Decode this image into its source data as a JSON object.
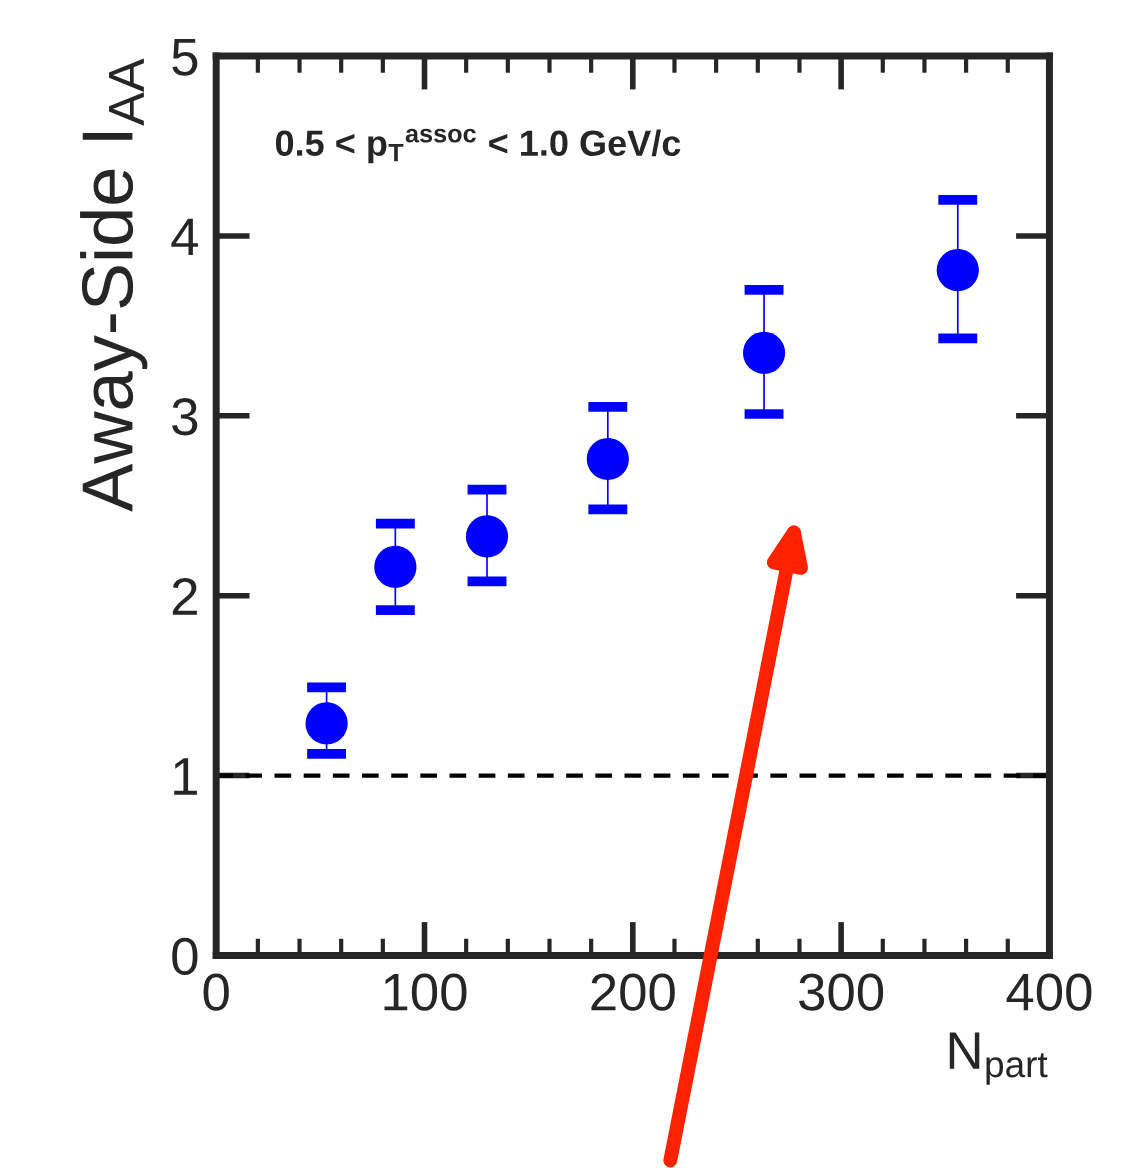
{
  "chart_data": {
    "type": "scatter",
    "ylabel": "Away-Side I$_{AA}$",
    "xlabel": "N$_{part}$",
    "annotations": [
      "0.5 < p$_{T}$$^{assoc}$ < 1.0 GeV/c"
    ],
    "x": [
      53,
      86,
      130,
      188,
      263,
      356
    ],
    "series": [
      {
        "color": "#0000ff",
        "values": [
          1.29,
          2.16,
          2.33,
          2.76,
          3.35,
          3.81
        ],
        "errors": [
          [
            1.12,
            1.49
          ],
          [
            1.92,
            2.4
          ],
          [
            2.08,
            2.59
          ],
          [
            2.48,
            3.05
          ],
          [
            3.01,
            3.7
          ],
          [
            3.43,
            4.2
          ]
        ]
      }
    ],
    "xlim": [
      0,
      400
    ],
    "xticks": [
      0,
      100,
      200,
      300,
      400
    ],
    "ylim": [
      0,
      5
    ],
    "yticks": [
      0,
      1,
      2,
      3,
      4,
      5
    ],
    "ref_lines": [
      {
        "axis": "y",
        "value": 1,
        "color": "#000000",
        "line_style": "dashed"
      }
    ],
    "marker": "circle",
    "grid": false,
    "legend": false
  }
}
